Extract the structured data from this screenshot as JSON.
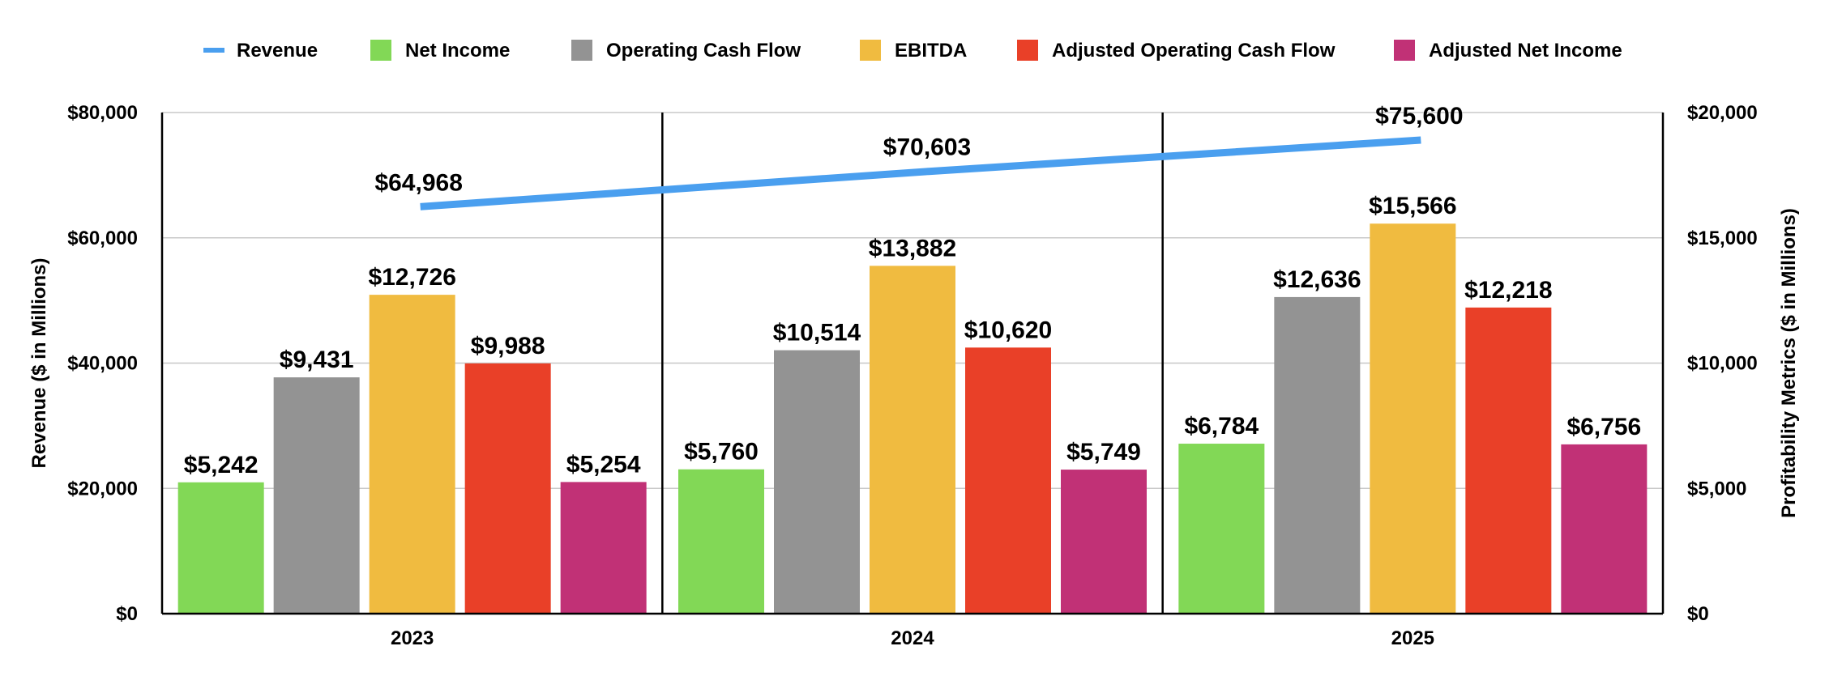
{
  "chart_data": {
    "type": "bar",
    "categories": [
      "2023",
      "2024",
      "2025"
    ],
    "line_series": {
      "name": "Revenue",
      "values": [
        64968,
        70603,
        75600
      ],
      "labels": [
        "$64,968",
        "$70,603",
        "$75,600"
      ],
      "color": "#4a9fef",
      "axis": "left"
    },
    "series": [
      {
        "name": "Net Income",
        "values": [
          5242,
          5760,
          6784
        ],
        "labels": [
          "$5,242",
          "$5,760",
          "$6,784"
        ],
        "color": "#82d856"
      },
      {
        "name": "Operating Cash Flow",
        "values": [
          9431,
          10514,
          12636
        ],
        "labels": [
          "$9,431",
          "$10,514",
          "$12,636"
        ],
        "color": "#939393"
      },
      {
        "name": "EBITDA",
        "values": [
          12726,
          13882,
          15566
        ],
        "labels": [
          "$12,726",
          "$13,882",
          "$15,566"
        ],
        "color": "#f0bb40"
      },
      {
        "name": "Adjusted Operating Cash Flow",
        "values": [
          9988,
          10620,
          12218
        ],
        "labels": [
          "$9,988",
          "$10,620",
          "$12,218"
        ],
        "color": "#e94028"
      },
      {
        "name": "Adjusted Net Income",
        "values": [
          5254,
          5749,
          6756
        ],
        "labels": [
          "$5,254",
          "$5,749",
          "$6,756"
        ],
        "color": "#c13176"
      }
    ],
    "left_axis": {
      "title": "Revenue ($ in Millions)",
      "ylim": [
        0,
        80000
      ],
      "ticks": [
        0,
        20000,
        40000,
        60000,
        80000
      ],
      "tick_labels": [
        "$0",
        "$20,000",
        "$40,000",
        "$60,000",
        "$80,000"
      ]
    },
    "right_axis": {
      "title": "Profitability Metrics ($ in Millions)",
      "ylim": [
        0,
        20000
      ],
      "ticks": [
        0,
        5000,
        10000,
        15000,
        20000
      ],
      "tick_labels": [
        "$0",
        "$5,000",
        "$10,000",
        "$15,000",
        "$20,000"
      ]
    },
    "grid": true,
    "legend_position": "top"
  }
}
